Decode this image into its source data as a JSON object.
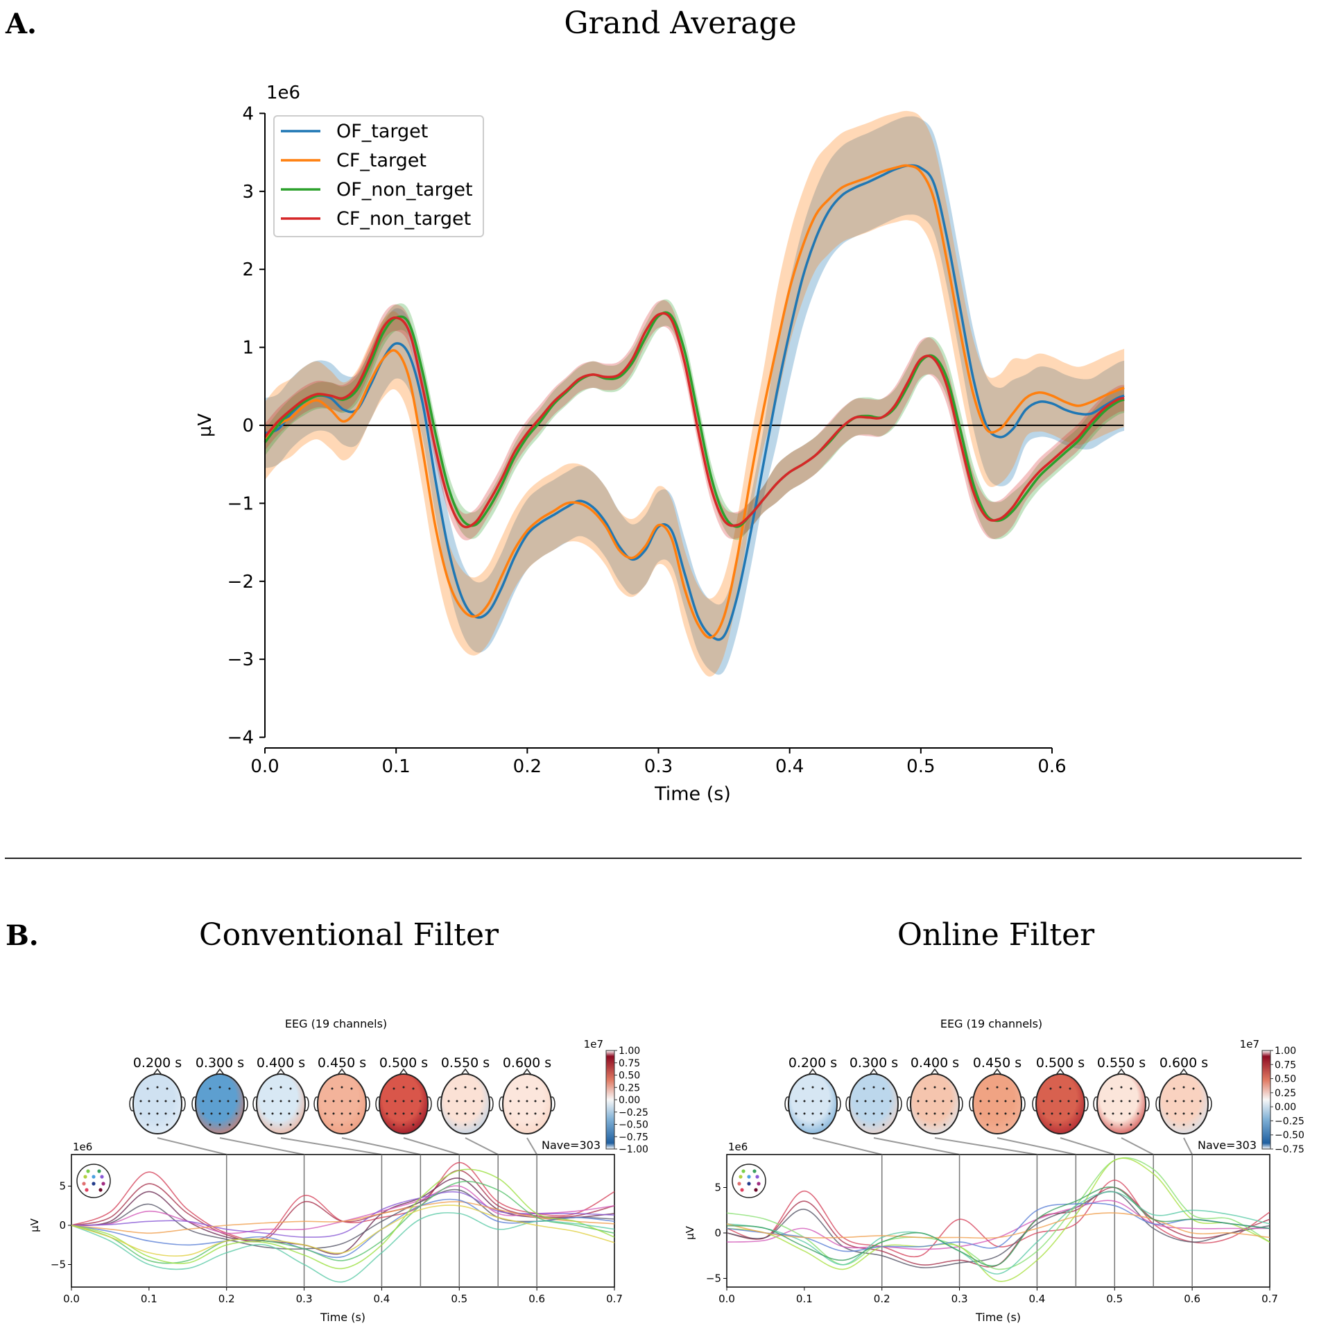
{
  "panel_a": {
    "letter": "A.",
    "title": "Grand Average"
  },
  "panel_b": {
    "letter": "B.",
    "left_title": "Conventional Filter",
    "right_title": "Online Filter"
  },
  "chart_data": [
    {
      "type": "line",
      "title": "Grand Average",
      "xlabel": "Time (s)",
      "ylabel": "µV",
      "y_scale_label": "1e6",
      "xlim": [
        0,
        0.655
      ],
      "ylim": [
        -4,
        4
      ],
      "xticks": [
        "0.0",
        "0.1",
        "0.2",
        "0.3",
        "0.4",
        "0.5",
        "0.6"
      ],
      "yticks": [
        "4",
        "3",
        "2",
        "1",
        "0",
        "−1",
        "−2",
        "−3",
        "−4"
      ],
      "legend_position": "top-left",
      "x": [
        0,
        0.01,
        0.02,
        0.03,
        0.04,
        0.05,
        0.06,
        0.07,
        0.08,
        0.09,
        0.1,
        0.11,
        0.12,
        0.13,
        0.14,
        0.15,
        0.16,
        0.17,
        0.18,
        0.19,
        0.2,
        0.21,
        0.22,
        0.23,
        0.24,
        0.25,
        0.26,
        0.27,
        0.28,
        0.29,
        0.3,
        0.31,
        0.32,
        0.33,
        0.34,
        0.35,
        0.36,
        0.37,
        0.38,
        0.39,
        0.4,
        0.41,
        0.42,
        0.43,
        0.44,
        0.45,
        0.46,
        0.47,
        0.48,
        0.49,
        0.5,
        0.51,
        0.52,
        0.53,
        0.54,
        0.55,
        0.56,
        0.57,
        0.58,
        0.59,
        0.6,
        0.61,
        0.62,
        0.63,
        0.64,
        0.65,
        0.655
      ],
      "series": [
        {
          "name": "OF_target",
          "color": "#1f77b4",
          "ci_halfwidth": 0.45,
          "values": [
            -0.1,
            -0.05,
            0.15,
            0.3,
            0.38,
            0.35,
            0.2,
            0.2,
            0.5,
            0.85,
            1.05,
            0.9,
            0.3,
            -0.7,
            -1.6,
            -2.2,
            -2.45,
            -2.4,
            -2.1,
            -1.7,
            -1.4,
            -1.25,
            -1.15,
            -1.05,
            -0.97,
            -1.05,
            -1.25,
            -1.55,
            -1.72,
            -1.6,
            -1.3,
            -1.35,
            -1.9,
            -2.45,
            -2.7,
            -2.7,
            -2.2,
            -1.4,
            -0.5,
            0.4,
            1.2,
            1.9,
            2.4,
            2.75,
            2.95,
            3.05,
            3.12,
            3.2,
            3.28,
            3.33,
            3.3,
            3.1,
            2.4,
            1.5,
            0.6,
            0.0,
            -0.15,
            -0.05,
            0.2,
            0.3,
            0.28,
            0.2,
            0.15,
            0.15,
            0.25,
            0.35,
            0.38
          ]
        },
        {
          "name": "CF_target",
          "color": "#ff7f0e",
          "ci_halfwidth": 0.5,
          "values": [
            -0.2,
            0,
            0.1,
            0.25,
            0.32,
            0.2,
            0.05,
            0.2,
            0.55,
            0.85,
            0.95,
            0.6,
            -0.3,
            -1.3,
            -2.0,
            -2.35,
            -2.45,
            -2.3,
            -1.95,
            -1.6,
            -1.35,
            -1.2,
            -1.1,
            -1.0,
            -1.0,
            -1.1,
            -1.3,
            -1.6,
            -1.7,
            -1.55,
            -1.28,
            -1.45,
            -2.1,
            -2.55,
            -2.72,
            -2.45,
            -1.7,
            -0.7,
            0.2,
            1.0,
            1.75,
            2.3,
            2.7,
            2.9,
            3.05,
            3.12,
            3.18,
            3.25,
            3.3,
            3.33,
            3.25,
            2.9,
            2.1,
            1.2,
            0.4,
            -0.05,
            -0.05,
            0.15,
            0.35,
            0.42,
            0.38,
            0.3,
            0.25,
            0.3,
            0.38,
            0.45,
            0.48
          ]
        },
        {
          "name": "OF_non_target",
          "color": "#2ca02c",
          "ci_halfwidth": 0.17,
          "values": [
            -0.22,
            0.0,
            0.18,
            0.3,
            0.38,
            0.38,
            0.33,
            0.45,
            0.78,
            1.18,
            1.38,
            1.3,
            0.7,
            -0.1,
            -0.8,
            -1.2,
            -1.28,
            -1.08,
            -0.78,
            -0.42,
            -0.15,
            0.05,
            0.27,
            0.43,
            0.58,
            0.65,
            0.6,
            0.62,
            0.8,
            1.12,
            1.4,
            1.4,
            0.95,
            0.15,
            -0.65,
            -1.15,
            -1.3,
            -1.15,
            -0.95,
            -0.75,
            -0.6,
            -0.5,
            -0.38,
            -0.22,
            -0.03,
            0.1,
            0.12,
            0.1,
            0.22,
            0.5,
            0.82,
            0.88,
            0.6,
            -0.05,
            -0.75,
            -1.15,
            -1.22,
            -1.1,
            -0.88,
            -0.66,
            -0.5,
            -0.35,
            -0.2,
            0.0,
            0.18,
            0.3,
            0.33
          ]
        },
        {
          "name": "CF_non_target",
          "color": "#d62728",
          "ci_halfwidth": 0.17,
          "values": [
            -0.15,
            0.05,
            0.2,
            0.33,
            0.4,
            0.38,
            0.35,
            0.5,
            0.85,
            1.25,
            1.38,
            1.2,
            0.5,
            -0.3,
            -0.95,
            -1.28,
            -1.25,
            -1.0,
            -0.7,
            -0.35,
            -0.1,
            0.1,
            0.3,
            0.45,
            0.6,
            0.65,
            0.62,
            0.65,
            0.85,
            1.2,
            1.42,
            1.35,
            0.8,
            -0.05,
            -0.8,
            -1.22,
            -1.28,
            -1.15,
            -0.95,
            -0.75,
            -0.6,
            -0.5,
            -0.38,
            -0.2,
            -0.02,
            0.1,
            0.1,
            0.1,
            0.25,
            0.55,
            0.85,
            0.85,
            0.5,
            -0.2,
            -0.85,
            -1.18,
            -1.2,
            -1.05,
            -0.8,
            -0.6,
            -0.45,
            -0.3,
            -0.15,
            0.05,
            0.22,
            0.33,
            0.35
          ]
        }
      ]
    },
    {
      "type": "line",
      "panel": "Conventional Filter",
      "title": "EEG (19 channels)",
      "xlabel": "Time (s)",
      "ylabel": "µV",
      "y_scale_label": "1e6",
      "xlim": [
        0,
        0.7
      ],
      "ylim": [
        -7.9,
        9.0
      ],
      "xticks": [
        "0.0",
        "0.1",
        "0.2",
        "0.3",
        "0.4",
        "0.5",
        "0.6",
        "0.7"
      ],
      "yticks": [
        {
          "v": 5,
          "label": "5"
        },
        {
          "v": 0,
          "label": "0"
        },
        {
          "v": -5,
          "label": "−5"
        }
      ],
      "nave": "303",
      "topomap_times": [
        "0.200 s",
        "0.300 s",
        "0.400 s",
        "0.450 s",
        "0.500 s",
        "0.550 s",
        "0.600 s"
      ],
      "topomap_time_values": [
        0.2,
        0.3,
        0.4,
        0.45,
        0.5,
        0.55,
        0.6
      ],
      "topomap_colors": [
        [
          "#cfe1f1",
          "#e6eff8"
        ],
        [
          "#5d9fd0",
          "#e07a63"
        ],
        [
          "#d8e8f4",
          "#f2ad93"
        ],
        [
          "#f3b39a",
          "#ee9a7c"
        ],
        [
          "#d9564a",
          "#8e0b22"
        ],
        [
          "#fbe1d5",
          "#b7d3ea"
        ],
        [
          "#fce6dc",
          "#f8d3c2"
        ]
      ],
      "colorbar": {
        "scale_label": "1e7",
        "ticks": [
          "1.00",
          "0.75",
          "0.50",
          "0.25",
          "0.00",
          "−0.25",
          "−0.50",
          "−0.75",
          "−1.00"
        ]
      },
      "x": [
        0,
        0.05,
        0.1,
        0.15,
        0.2,
        0.25,
        0.3,
        0.35,
        0.4,
        0.45,
        0.5,
        0.55,
        0.6,
        0.65,
        0.7
      ],
      "series": [
        {
          "color": "#d6455c",
          "values": [
            0,
            1.7,
            6.8,
            2.0,
            -1.0,
            -1.5,
            3.8,
            0.5,
            1.0,
            2.5,
            8.0,
            3.0,
            1.5,
            1.5,
            4.3
          ]
        },
        {
          "color": "#a8324c",
          "values": [
            0,
            1.0,
            5.3,
            1.5,
            -1.2,
            -1.8,
            3.0,
            0.5,
            1.5,
            3.0,
            7.0,
            2.5,
            1.2,
            1.2,
            2.5
          ]
        },
        {
          "color": "#6a2a52",
          "values": [
            0,
            0.5,
            4.3,
            0.5,
            -1.5,
            -2.0,
            -2.5,
            -3.5,
            1.5,
            3.5,
            6.0,
            2.0,
            1.0,
            1.0,
            1.5
          ]
        },
        {
          "color": "#555566",
          "values": [
            0,
            0.3,
            2.7,
            -0.5,
            -1.8,
            -2.8,
            -3.0,
            -2.3,
            0.5,
            3.0,
            4.5,
            1.0,
            0.5,
            1.0,
            0.8
          ]
        },
        {
          "color": "#d257b8",
          "values": [
            0,
            0.2,
            1.8,
            0.5,
            -1.0,
            -0.5,
            -0.5,
            0.5,
            1.8,
            3.2,
            5.0,
            1.5,
            1.5,
            1.8,
            2.5
          ]
        },
        {
          "color": "#8a5ad6",
          "values": [
            0,
            0.1,
            0.5,
            0.5,
            -0.5,
            -1.0,
            -1.5,
            -1.0,
            2.0,
            3.5,
            4.2,
            1.8,
            1.5,
            1.5,
            1.3
          ]
        },
        {
          "color": "#f0a050",
          "values": [
            0,
            -0.5,
            -1.0,
            -0.5,
            0,
            0.3,
            0.5,
            0.5,
            1.5,
            2.5,
            3.0,
            2.0,
            1.0,
            0.5,
            0.2
          ]
        },
        {
          "color": "#5a7fd6",
          "values": [
            0,
            -0.8,
            -2.0,
            -2.5,
            -2.0,
            -1.5,
            -3.0,
            -4.0,
            -0.5,
            2.5,
            3.2,
            0.5,
            0.5,
            1.0,
            0.5
          ]
        },
        {
          "color": "#55c06a",
          "values": [
            0,
            -1.5,
            -4.5,
            -4.5,
            -2.0,
            -2.0,
            -3.0,
            -4.5,
            -2.0,
            2.5,
            5.5,
            4.5,
            1.0,
            0,
            -1.0
          ]
        },
        {
          "color": "#9be040",
          "values": [
            0,
            -1.2,
            -4.0,
            -4.8,
            -2.5,
            -2.2,
            -3.8,
            -5.5,
            -2.5,
            3.5,
            7.0,
            6.0,
            1.5,
            0.5,
            -1.5
          ]
        },
        {
          "color": "#5ccaa8",
          "values": [
            0,
            -2.0,
            -5.0,
            -5.5,
            -3.5,
            -2.5,
            -5.0,
            -7.2,
            -3.5,
            0.8,
            1.5,
            -0.5,
            0.5,
            0.2,
            -0.5
          ]
        },
        {
          "color": "#e0d040",
          "values": [
            0,
            -1.5,
            -3.5,
            -3.8,
            -2.0,
            -1.8,
            -2.5,
            -3.5,
            -0.5,
            2.0,
            2.5,
            1.0,
            0,
            -0.8,
            -2.2
          ]
        }
      ]
    },
    {
      "type": "line",
      "panel": "Online Filter",
      "title": "EEG (19 channels)",
      "xlabel": "Time (s)",
      "ylabel": "µV",
      "y_scale_label": "1e6",
      "xlim": [
        0,
        0.7
      ],
      "ylim": [
        -5.9,
        8.6
      ],
      "xticks": [
        "0.0",
        "0.1",
        "0.2",
        "0.3",
        "0.4",
        "0.5",
        "0.6",
        "0.7"
      ],
      "yticks": [
        {
          "v": 5,
          "label": "5"
        },
        {
          "v": 0,
          "label": "0"
        },
        {
          "v": -5,
          "label": "−5"
        }
      ],
      "nave": "303",
      "topomap_times": [
        "0.200 s",
        "0.300 s",
        "0.400 s",
        "0.450 s",
        "0.500 s",
        "0.550 s",
        "0.600 s"
      ],
      "topomap_time_values": [
        0.2,
        0.3,
        0.4,
        0.45,
        0.5,
        0.55,
        0.6
      ],
      "topomap_colors": [
        [
          "#d6e6f3",
          "#6fa7d3"
        ],
        [
          "#bcd7ec",
          "#f6d2c3"
        ],
        [
          "#f5c5ae",
          "#dbe9f5"
        ],
        [
          "#f0a383",
          "#f4b59c"
        ],
        [
          "#d8614f",
          "#a91c2c"
        ],
        [
          "#fbe5da",
          "#cc3b3b"
        ],
        [
          "#f9d2c0",
          "#d3e4f2"
        ]
      ],
      "colorbar": {
        "scale_label": "1e7",
        "ticks": [
          "1.00",
          "0.75",
          "0.50",
          "0.25",
          "0.00",
          "−0.25",
          "−0.50",
          "−0.75"
        ]
      },
      "x": [
        0,
        0.05,
        0.1,
        0.15,
        0.2,
        0.25,
        0.3,
        0.35,
        0.4,
        0.45,
        0.5,
        0.55,
        0.6,
        0.65,
        0.7
      ],
      "series": [
        {
          "color": "#d6455c",
          "values": [
            0.5,
            -0.5,
            4.6,
            -0.5,
            -1.5,
            -2.5,
            1.5,
            -1.5,
            0,
            1.0,
            5.8,
            1.0,
            -1.0,
            -0.5,
            2.3
          ]
        },
        {
          "color": "#a8324c",
          "values": [
            0,
            -0.5,
            3.5,
            -1.0,
            -2.0,
            -3.5,
            -3.0,
            -3.5,
            1.5,
            2.5,
            5.0,
            1.5,
            -0.5,
            0,
            1.5
          ]
        },
        {
          "color": "#555566",
          "values": [
            0,
            -0.5,
            2.6,
            -1.5,
            -2.5,
            -3.8,
            -3.3,
            -2.5,
            1.0,
            2.8,
            4.5,
            0.5,
            -1.0,
            0,
            0.8
          ]
        },
        {
          "color": "#d257b8",
          "values": [
            -1.0,
            -0.8,
            0.5,
            -1.5,
            -1.5,
            -1.8,
            -1.5,
            -0.5,
            1.5,
            2.8,
            3.5,
            1.0,
            0.5,
            0.5,
            0.5
          ]
        },
        {
          "color": "#88e070",
          "values": [
            2.2,
            1.5,
            -0.5,
            -3.5,
            -1.0,
            -0.5,
            -1.5,
            -4.0,
            -2.0,
            3.0,
            8.0,
            7.0,
            2.0,
            1.5,
            -1.0
          ]
        },
        {
          "color": "#a8e040",
          "values": [
            0.5,
            0,
            -2.0,
            -4.0,
            -1.5,
            -1.5,
            -1.5,
            -5.3,
            -3.0,
            2.0,
            8.0,
            6.5,
            1.5,
            1.0,
            -1.0
          ]
        },
        {
          "color": "#5ccaa8",
          "values": [
            1.0,
            0.5,
            -1.0,
            -3.5,
            -0.5,
            0,
            -2.0,
            -4.5,
            -1.0,
            3.0,
            4.5,
            2.0,
            2.5,
            2.0,
            1.0
          ]
        },
        {
          "color": "#5a7fd6",
          "values": [
            0.5,
            0,
            -0.5,
            -2.0,
            -1.5,
            -1.5,
            -1.0,
            -1.5,
            2.5,
            3.2,
            3.0,
            1.0,
            1.5,
            1.0,
            0.5
          ]
        },
        {
          "color": "#f0a050",
          "values": [
            1.0,
            0,
            -0.5,
            -0.5,
            -0.3,
            -0.5,
            -0.5,
            -0.5,
            0.5,
            1.8,
            2.2,
            1.5,
            0,
            0,
            -0.5
          ]
        },
        {
          "color": "#3aa060",
          "values": [
            0.8,
            0.5,
            -1.5,
            -3.0,
            -1.0,
            0,
            -2.0,
            -3.5,
            1.5,
            3.5,
            5.0,
            1.5,
            1.5,
            1.0,
            0.5
          ]
        }
      ]
    }
  ]
}
